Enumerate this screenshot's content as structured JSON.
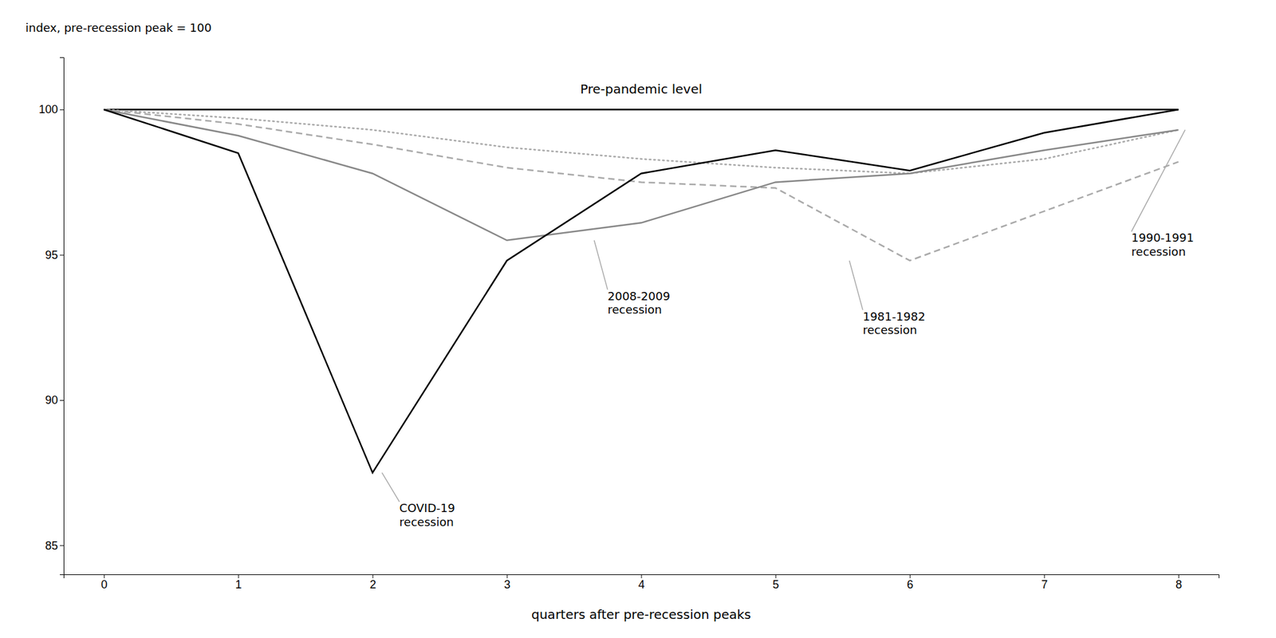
{
  "chart_data": {
    "type": "line",
    "xlabel": "quarters after pre-recession peaks",
    "ylabel": "index, pre-recession peak = 100",
    "x": [
      0,
      1,
      2,
      3,
      4,
      5,
      6,
      7,
      8
    ],
    "series": [
      {
        "color": "#000000",
        "line_style": "solid",
        "values": [
          100,
          100,
          100,
          100,
          100,
          100,
          100,
          100,
          100
        ]
      },
      {
        "color": "#aaaaaa",
        "line_style": "dotted",
        "values": [
          100,
          99.7,
          99.3,
          98.7,
          98.3,
          98.0,
          97.8,
          98.3,
          99.3
        ]
      },
      {
        "color": "#aaaaaa",
        "line_style": "dashed",
        "values": [
          100,
          99.5,
          98.8,
          98.0,
          97.5,
          97.3,
          94.8,
          96.5,
          98.2
        ]
      },
      {
        "color": "#888888",
        "line_style": "solid",
        "values": [
          100,
          99.1,
          97.8,
          95.5,
          96.1,
          97.5,
          97.8,
          98.6,
          99.3
        ]
      },
      {
        "color": "#000000",
        "line_style": "solid",
        "values": [
          100,
          98.5,
          87.5,
          94.8,
          97.8,
          98.6,
          97.9,
          99.2,
          100.0
        ]
      }
    ],
    "xlim": [
      -0.3,
      8.3
    ],
    "ylim": [
      84.0,
      101.8
    ],
    "xticks": [
      0,
      1,
      2,
      3,
      4,
      5,
      6,
      7,
      8
    ],
    "yticks": [
      85,
      90,
      95,
      100
    ],
    "grid": false,
    "annotations": [
      {
        "text": "Pre-pandemic level",
        "xy": [
          4.0,
          100.55
        ]
      },
      {
        "text": "COVID-19\nrecession",
        "xy": [
          2.07,
          87.5
        ],
        "xytext": [
          2.2,
          86.5
        ]
      },
      {
        "text": "2008-2009\nrecession",
        "xy": [
          3.65,
          95.5
        ],
        "xytext": [
          3.75,
          93.8
        ]
      },
      {
        "text": "1981-1982\nrecession",
        "xy": [
          5.55,
          94.8
        ],
        "xytext": [
          5.65,
          93.1
        ]
      },
      {
        "text": "1990-1991\nrecession",
        "xy": [
          8.05,
          99.3
        ],
        "xytext": [
          7.65,
          95.8
        ]
      }
    ]
  }
}
